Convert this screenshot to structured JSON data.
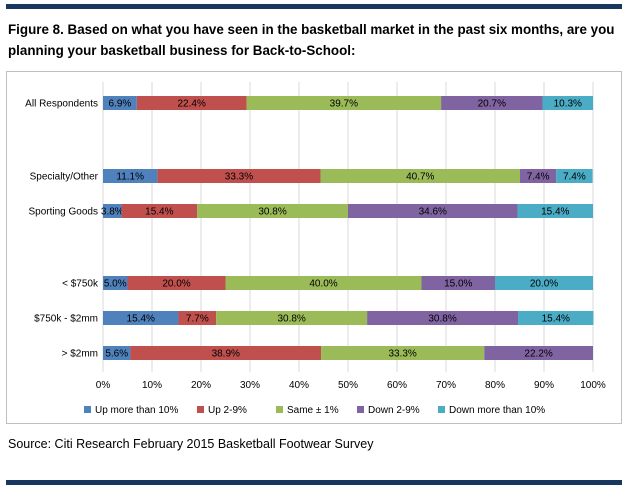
{
  "figure": {
    "title": "Figure 8. Based on what you have seen in the basketball market in the past six months, are you planning your basketball business for Back-to-School:",
    "source": "Source: Citi Research February 2015 Basketball Footwear Survey"
  },
  "colors": {
    "rule": "#17375e",
    "grid": "#d9d9d9",
    "series": [
      "#4f81bd",
      "#c0504d",
      "#9bbb59",
      "#8064a2",
      "#4bacc6"
    ]
  },
  "chart_data": {
    "type": "bar",
    "orientation": "horizontal",
    "stacked": "percent",
    "categories": [
      "All Respondents",
      "Specialty/Other",
      "Sporting Goods",
      "< $750k",
      "$750k - $2mm",
      "> $2mm"
    ],
    "series": [
      {
        "name": "Up more than 10%",
        "values": [
          6.9,
          11.1,
          3.8,
          5.0,
          15.4,
          5.6
        ],
        "labels": [
          "6.9%",
          "11.1%",
          "3.8%",
          "5.0%",
          "15.4%",
          "5.6%"
        ]
      },
      {
        "name": "Up 2-9%",
        "values": [
          22.4,
          33.3,
          15.4,
          20.0,
          7.7,
          38.9
        ],
        "labels": [
          "22.4%",
          "33.3%",
          "15.4%",
          "20.0%",
          "7.7%",
          "38.9%"
        ]
      },
      {
        "name": "Same ± 1%",
        "values": [
          39.7,
          40.7,
          30.8,
          40.0,
          30.8,
          33.3
        ],
        "labels": [
          "39.7%",
          "40.7%",
          "30.8%",
          "40.0%",
          "30.8%",
          "33.3%"
        ]
      },
      {
        "name": "Down 2-9%",
        "values": [
          20.7,
          7.4,
          34.6,
          15.0,
          30.8,
          22.2
        ],
        "labels": [
          "20.7%",
          "7.4%",
          "34.6%",
          "15.0%",
          "30.8%",
          "22.2%"
        ]
      },
      {
        "name": "Down more than 10%",
        "values": [
          10.3,
          7.4,
          15.4,
          20.0,
          15.4,
          0
        ],
        "labels": [
          "10.3%",
          "7.4%",
          "15.4%",
          "20.0%",
          "15.4%",
          ""
        ]
      }
    ],
    "xlim": [
      0,
      100
    ],
    "xticks": [
      "0%",
      "10%",
      "20%",
      "30%",
      "40%",
      "50%",
      "60%",
      "70%",
      "80%",
      "90%",
      "100%"
    ],
    "grid": true,
    "legend_position": "bottom"
  }
}
